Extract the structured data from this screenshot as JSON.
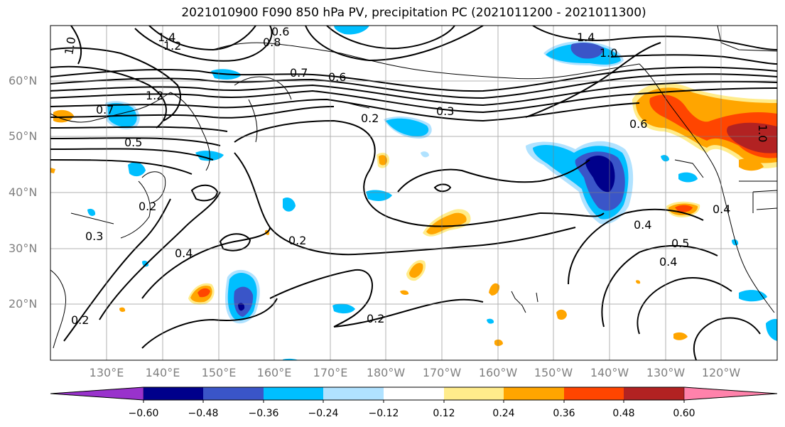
{
  "title": "2021010900 F090 850 hPa PV, precipitation PC (2021011200 - 2021011300)",
  "latitudes": [
    "60°N",
    "50°N",
    "40°N",
    "30°N",
    "20°N"
  ],
  "longitudes": [
    "130°E",
    "140°E",
    "150°E",
    "160°E",
    "170°E",
    "180°W",
    "170°W",
    "160°W",
    "150°W",
    "140°W",
    "130°W",
    "120°W"
  ],
  "colorbar": {
    "ticks": [
      "−0.60",
      "−0.48",
      "−0.36",
      "−0.24",
      "−0.12",
      "0.12",
      "0.24",
      "0.36",
      "0.48",
      "0.60"
    ],
    "colors": [
      "#9932CC",
      "#00008B",
      "#3A55C8",
      "#00BFFF",
      "#B0E2FF",
      "#FFFFFF",
      "#FFEC8B",
      "#FFA500",
      "#FF4500",
      "#B22222",
      "#FF82AB"
    ]
  },
  "contour_labels": [
    "1.0",
    "1.4",
    "1.2",
    "0.6",
    "0.8",
    "1.4",
    "1.0",
    "0.7",
    "0.6",
    "0.7",
    "1.2",
    "0.5",
    "0.2",
    "0.3",
    "0.2",
    "0.3",
    "0.4",
    "0.2",
    "0.2",
    "0.2",
    "0.4",
    "0.5",
    "0.4",
    "0.4",
    "0.6",
    "1.0"
  ]
}
